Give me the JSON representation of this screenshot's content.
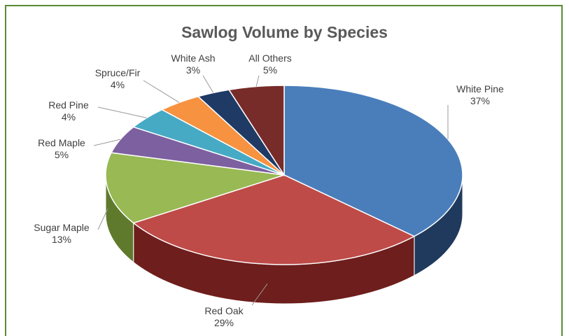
{
  "chart_data": {
    "type": "pie",
    "title": "Sawlog Volume by Species",
    "slices": [
      {
        "label": "White Pine",
        "percent_label": "37%",
        "value": 37,
        "color": "#4a7ebb",
        "side_color": "#1f3a5c"
      },
      {
        "label": "Red Oak",
        "percent_label": "29%",
        "value": 29,
        "color": "#be4b48",
        "side_color": "#6e1e1c"
      },
      {
        "label": "Sugar Maple",
        "percent_label": "13%",
        "value": 13,
        "color": "#98b954",
        "side_color": "#5f7a2c"
      },
      {
        "label": "Red Maple",
        "percent_label": "5%",
        "value": 5,
        "color": "#7d60a0",
        "side_color": "#4a3766"
      },
      {
        "label": "Red Pine",
        "percent_label": "4%",
        "value": 4,
        "color": "#46aac5",
        "side_color": "#226a7e"
      },
      {
        "label": "Spruce/Fir",
        "percent_label": "4%",
        "value": 4,
        "color": "#f69240",
        "side_color": "#a8591a"
      },
      {
        "label": "White Ash",
        "percent_label": "3%",
        "value": 3,
        "color": "#1f3a64",
        "side_color": "#10203a"
      },
      {
        "label": "All Others",
        "percent_label": "5%",
        "value": 5,
        "color": "#772c2a",
        "side_color": "#431614"
      }
    ]
  }
}
